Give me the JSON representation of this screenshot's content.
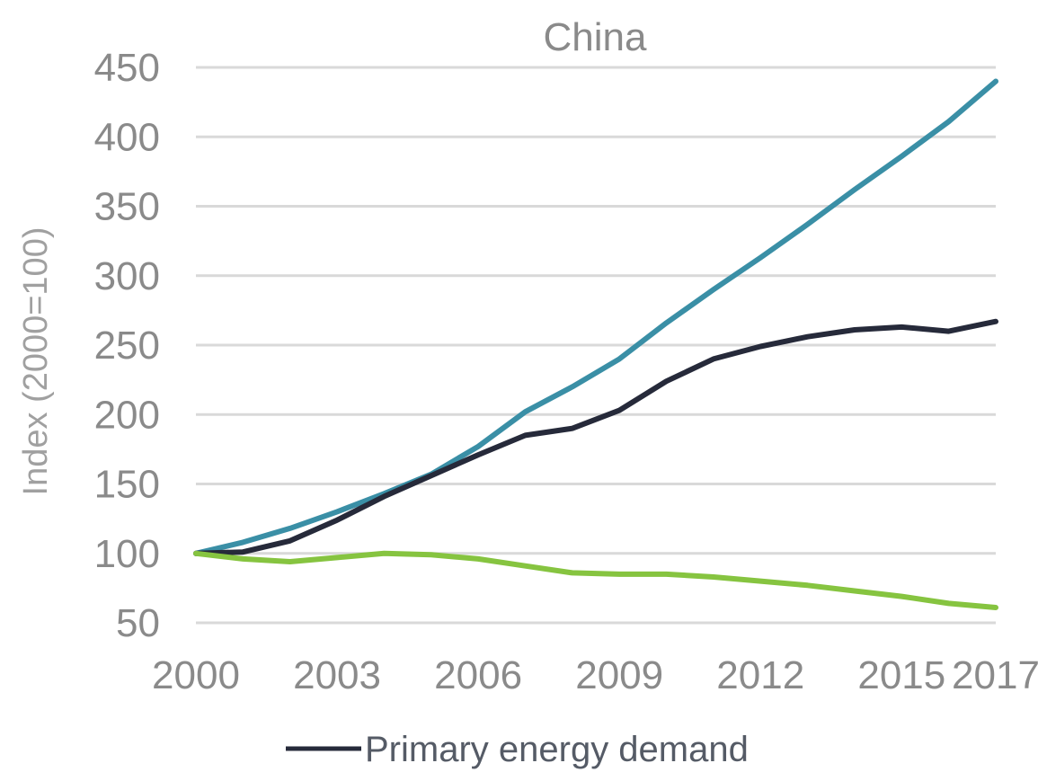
{
  "chart_data": {
    "type": "line",
    "title": "China",
    "ylabel": "Index (2000=100)",
    "xlabel": "",
    "xlim": [
      2000,
      2017
    ],
    "ylim": [
      50,
      450
    ],
    "x_ticks": [
      2000,
      2003,
      2006,
      2009,
      2012,
      2015,
      2017
    ],
    "y_ticks": [
      50,
      100,
      150,
      200,
      250,
      300,
      350,
      400,
      450
    ],
    "grid": "horizontal",
    "x": [
      2000,
      2001,
      2002,
      2003,
      2004,
      2005,
      2006,
      2007,
      2008,
      2009,
      2010,
      2011,
      2012,
      2013,
      2014,
      2015,
      2016,
      2017
    ],
    "series": [
      {
        "color": "#3a8fa6",
        "values": [
          100,
          108,
          118,
          130,
          143,
          157,
          177,
          202,
          220,
          240,
          266,
          290,
          313,
          337,
          362,
          386,
          411,
          440
        ]
      },
      {
        "name": "Primary energy demand",
        "color": "#262a3a",
        "values": [
          100,
          101,
          109,
          124,
          141,
          156,
          171,
          185,
          190,
          203,
          224,
          240,
          249,
          256,
          261,
          263,
          260,
          267
        ]
      },
      {
        "color": "#86c440",
        "values": [
          100,
          96,
          94,
          97,
          100,
          99,
          96,
          91,
          86,
          85,
          85,
          83,
          80,
          77,
          73,
          69,
          64,
          61
        ]
      }
    ],
    "legend": {
      "position": "bottom-center",
      "entries": [
        {
          "label": "Primary energy demand",
          "color": "#262a3a"
        }
      ]
    }
  }
}
